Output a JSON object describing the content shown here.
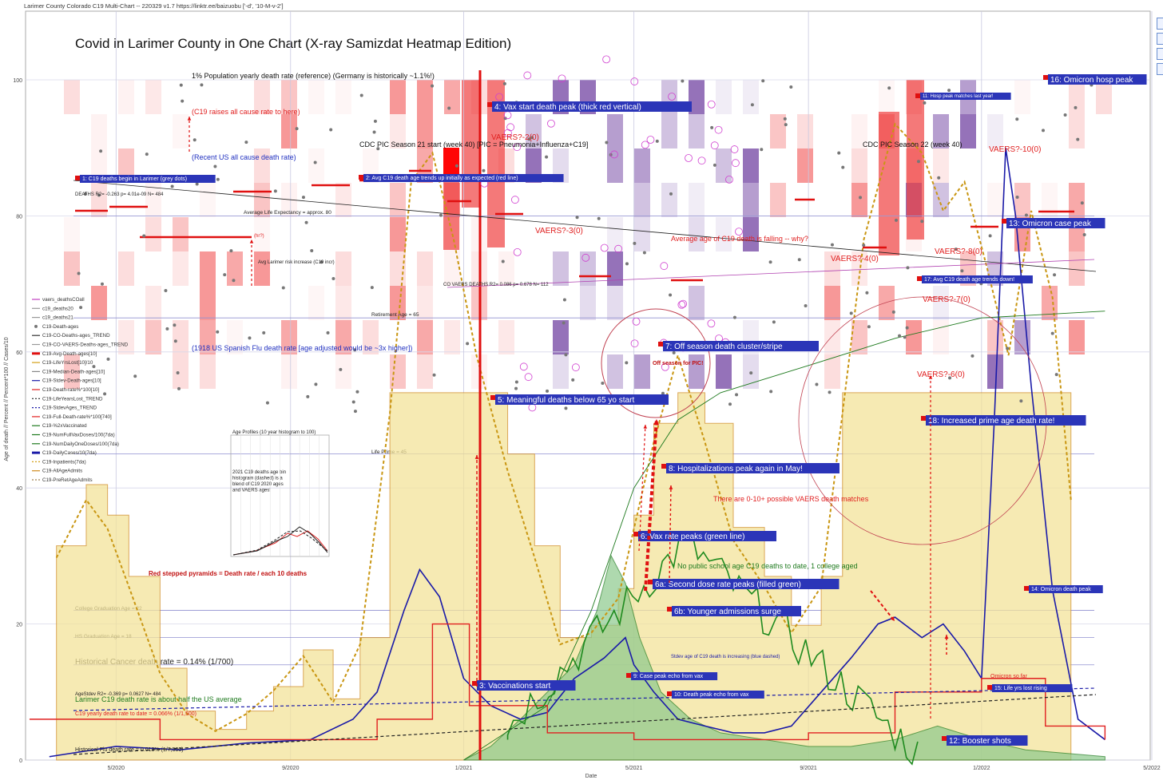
{
  "header": {
    "meta_line": "Larimer County Colorado C19 Multi-Chart -- 220329 v1.7  https://linktr.ee/baizuobu  ['-d', '10-M-v-2']",
    "title": "Covid in Larimer County in One Chart (X-ray Samizdat Heatmap Edition)"
  },
  "colors": {
    "heat_red": "#f04040",
    "heat_purple": "#7a4fa8",
    "gold": "#d4a017",
    "gold_fill": "#f3e39a",
    "blue": "#1a1aa8",
    "green": "#1e7a1e",
    "green_fill": "#8cc98c",
    "red": "#e01010",
    "label_bg": "#2b35b8",
    "annot_red": "#e02020"
  },
  "chart_data": {
    "type": "line",
    "title": "Covid in Larimer County in One Chart (X-ray Samizdat Heatmap Edition)",
    "xlabel": "Date",
    "ylabel": "Age of death // Percent // Percent*100 // Cases/10",
    "x_range": [
      "2020-03-01",
      "2022-05-01"
    ],
    "ylim": [
      0,
      100
    ],
    "x_ticks": [
      "5/2020",
      "9/2020",
      "1/2021",
      "5/2021",
      "9/2021",
      "1/2022",
      "5/2022"
    ],
    "y_ticks": [
      "0",
      "20",
      "40",
      "60",
      "80",
      "100"
    ],
    "grid": true,
    "legend": [
      "vaers_deathsCOall",
      "c19_deaths20",
      "c19_deaths21",
      "C19-Death-ages",
      "C19-CO-Deaths-ages_TREND",
      "C19-CO-VAERS-Deaths-ages_TREND",
      "C19-Avg-Death-ages[10]",
      "C19-LifeYrsLost[10]/10",
      "C19-Median-Death-ages[10]",
      "C19-Stdev-Death-ages[10]",
      "C19-Death-rate%*100[10]",
      "C19-LifeYearsLost_TREND",
      "C19-StdevAges_TREND",
      "C19-Full-Death-rate%*100[740]",
      "C19-%2xVaccinated",
      "C19-NumFullVaxDoses/100(7da)",
      "C19-NumDailyOneDoses/100(7da)",
      "C19-DailyCases/10(7da)",
      "C19-Inpatients(7da)",
      "C19-AllAgeAdmits",
      "C19-PreRetAgeAdmits"
    ],
    "reference_lines": [
      {
        "label": "Average Life Expectancy = approx. 80",
        "y": 80
      },
      {
        "label": "Retirement Age = 65",
        "y": 65
      },
      {
        "label": "Life Prime = 45",
        "y": 45
      },
      {
        "label": "College Graduation Age = 22",
        "y": 22
      },
      {
        "label": "HS Graduation Age = 18",
        "y": 18
      },
      {
        "label": "Historical Cancer death rate = 0.14% (1/700)",
        "y": 14
      }
    ],
    "series": [
      {
        "name": "C19-DailyCases/10(7da)",
        "x": [
          "2020-03-15",
          "2020-05-01",
          "2020-06-15",
          "2020-08-01",
          "2020-09-15",
          "2020-10-15",
          "2020-11-01",
          "2020-11-20",
          "2020-12-01",
          "2020-12-15",
          "2021-01-01",
          "2021-01-20",
          "2021-02-10",
          "2021-03-01",
          "2021-03-20",
          "2021-04-10",
          "2021-04-25",
          "2021-05-01",
          "2021-05-15",
          "2021-06-01",
          "2021-06-20",
          "2021-07-10",
          "2021-08-01",
          "2021-08-20",
          "2021-09-10",
          "2021-10-01",
          "2021-10-20",
          "2021-11-01",
          "2021-11-20",
          "2021-12-05",
          "2021-12-20",
          "2022-01-01",
          "2022-01-10",
          "2022-01-18",
          "2022-01-25",
          "2022-02-05",
          "2022-02-20",
          "2022-03-10",
          "2022-03-29"
        ],
        "y": [
          0.5,
          2,
          1.5,
          2.5,
          3,
          6,
          10,
          22,
          28,
          24,
          12,
          8,
          6,
          7,
          12,
          15,
          18,
          14,
          10,
          6,
          5,
          4,
          4,
          5,
          10,
          15,
          20,
          21,
          18,
          20,
          16,
          12,
          50,
          90,
          80,
          55,
          25,
          6,
          3
        ]
      },
      {
        "name": "C19-Inpatients(7da)",
        "x": [
          "2020-03-20",
          "2020-04-10",
          "2020-04-25",
          "2020-05-10",
          "2020-06-01",
          "2020-06-20",
          "2020-07-10",
          "2020-08-01",
          "2020-08-20",
          "2020-09-10",
          "2020-10-01",
          "2020-10-20",
          "2020-11-10",
          "2020-11-25",
          "2020-12-10",
          "2020-12-25",
          "2021-01-10",
          "2021-02-01",
          "2021-02-20",
          "2021-03-10",
          "2021-04-01",
          "2021-04-20",
          "2021-05-01",
          "2021-05-15",
          "2021-06-01",
          "2021-06-20",
          "2021-07-10",
          "2021-08-01",
          "2021-08-20",
          "2021-09-10",
          "2021-09-25",
          "2021-10-10",
          "2021-11-01",
          "2021-11-20",
          "2021-12-05",
          "2021-12-20",
          "2022-01-05",
          "2022-01-20",
          "2022-02-05",
          "2022-02-20",
          "2022-03-05"
        ],
        "y": [
          35,
          45,
          40,
          30,
          15,
          8,
          5,
          8,
          12,
          18,
          10,
          20,
          60,
          100,
          105,
          90,
          70,
          50,
          35,
          20,
          22,
          28,
          40,
          55,
          70,
          55,
          38,
          30,
          22,
          30,
          60,
          90,
          110,
          105,
          95,
          100,
          85,
          70,
          95,
          80,
          45
        ]
      },
      {
        "name": "C19-NumFullVaxDoses/100(7da)",
        "x": [
          "2021-01-01",
          "2021-01-20",
          "2021-02-10",
          "2021-03-01",
          "2021-03-20",
          "2021-04-05",
          "2021-04-15",
          "2021-04-25",
          "2021-05-05",
          "2021-05-20",
          "2021-06-10",
          "2021-07-01",
          "2021-08-01",
          "2021-09-01",
          "2021-10-01",
          "2021-11-01",
          "2021-12-01",
          "2022-01-01",
          "2022-02-01",
          "2022-03-01",
          "2022-03-29"
        ],
        "y": [
          0,
          2,
          6,
          10,
          14,
          22,
          30,
          26,
          18,
          10,
          6,
          4,
          3,
          2,
          2,
          3,
          5,
          3,
          1.5,
          1,
          0.5
        ]
      },
      {
        "name": "C19-%2xVaccinated",
        "x": [
          "2021-01-01",
          "2021-03-01",
          "2021-04-01",
          "2021-05-01",
          "2021-06-01",
          "2021-07-01",
          "2021-09-01",
          "2021-11-01",
          "2022-01-01",
          "2022-03-29"
        ],
        "y": [
          0,
          8,
          22,
          40,
          50,
          54,
          58,
          62,
          65,
          66
        ]
      },
      {
        "name": "C19-Death-rate%*100[10]",
        "x": [
          "2020-03-01",
          "2020-06-01",
          "2020-09-01",
          "2020-11-01",
          "2020-12-10",
          "2021-01-05",
          "2021-03-01",
          "2021-05-01",
          "2021-07-01",
          "2021-09-01",
          "2021-11-01",
          "2022-01-01",
          "2022-02-15",
          "2022-03-29"
        ],
        "y": [
          6,
          3,
          3,
          6,
          20,
          8,
          4,
          3,
          3,
          4,
          10,
          12,
          5,
          3
        ]
      }
    ],
    "vaers_marker_labels": [
      "VAERS?-2(0)",
      "VAERS?-3(0)",
      "VAERS?-4(0)",
      "VAERS?-8(0)",
      "VAERS?-7(0)",
      "VAERS?-6(0)",
      "VAERS?-10(0)"
    ],
    "numbered_labels": [
      "1: C19 deaths begin in Larimer (grey dots)",
      "2: Avg C19 death age trends up initially as expected (red line)",
      "3: Vaccinations start",
      "4: Vax start death peak (thick red vertical)",
      "5: Meaningful deaths below 65 yo start",
      "6: Vax rate peaks (green line)",
      "6a: Second dose rate peaks (filled green)",
      "6b: Younger admissions surge",
      "7: Off season death cluster/stripe",
      "8: Hospitalizations peak again in May!",
      "9: Case peak echo from vax",
      "10: Death peak echo from vax",
      "11: Hosp peak matches last year!",
      "12: Booster shots",
      "13: Omicron case peak",
      "14: Omicron death peak",
      "15: Life yrs lost rising",
      "16: Omicron hosp peak",
      "17: Avg C19 death age trends down!",
      "18: Increased prime age death rate!"
    ],
    "annotations": [
      "1% Population yearly death rate (reference) (Germany is historically ~1.1%!)",
      "(C19 raises all cause rate to here)",
      "(Recent US all cause death rate)",
      "CDC PIC Season 21 start (week 40) [PIC = Pneumonia+Influenza+C19]",
      "CDC PIC Season 22 (week 40)",
      "DEATHS R2= -0.263 p= 4.01e-09 N= 484",
      "CO VAERS DEATHS R2= 0.086 p= 0.678 N= 112",
      "Average age of C19 death is falling -- why?",
      "(1918 US Spanish Flu death rate [age adjusted would be ~3x higher])",
      "Off season for PIC!",
      "There are 0-10+ possible VAERS death matches",
      "No public school age C19 deaths to date, 1 college aged",
      "Red stepped pyramids = Death rate / each 10 deaths",
      "Larimer C19 death rate is about half the US average",
      "C19 yearly death rate to date = 0.066% (1/1,500)",
      "Historical Flu death rate = 0.013% (1/7,500)",
      "AgeStdev R2= -0.369 p= 0.0627 N= 484",
      "Stdev age of C19 death is increasing (blue dashed)",
      "Omicron so far",
      "(hr?)",
      "Avg Larimer risk increase (C19 incr)",
      "Age Profiles (10 year histogram to 100)",
      "2021 C19 deaths age bin histogram (dashed) is a blend of C19 2020 ages and VAERS ages!"
    ]
  }
}
